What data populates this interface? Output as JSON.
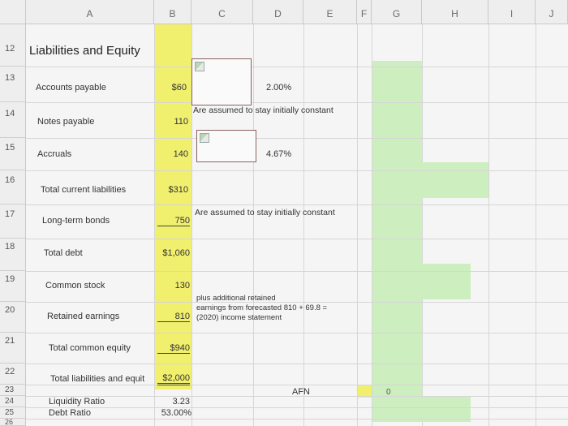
{
  "columns": [
    "A",
    "B",
    "C",
    "D",
    "E",
    "F",
    "G",
    "H",
    "I",
    "J"
  ],
  "rows": [
    "12",
    "13",
    "14",
    "15",
    "16",
    "17",
    "18",
    "19",
    "20",
    "21",
    "22",
    "23",
    "24",
    "25",
    "26"
  ],
  "section_title": "Liabilities and Equity",
  "items": {
    "accounts_payable": {
      "label": "Accounts payable",
      "value": "$60"
    },
    "notes_payable": {
      "label": "Notes payable",
      "value": "110"
    },
    "accruals": {
      "label": "Accruals",
      "value": "140"
    },
    "total_current_liabilities": {
      "label": "Total current liabilities",
      "value": "$310"
    },
    "long_term_bonds": {
      "label": "Long-term bonds",
      "value": "750"
    },
    "total_debt": {
      "label": "Total debt",
      "value": "$1,060"
    },
    "common_stock": {
      "label": "Common stock",
      "value": "130"
    },
    "retained_earnings": {
      "label": "Retained earnings",
      "value": "810"
    },
    "total_common_equity": {
      "label": "Total common equity",
      "value": "$940"
    },
    "total_liabilities_equity": {
      "label": "Total liabilities and equit",
      "value": "$2,000"
    },
    "liquidity_ratio": {
      "label": "Liquidity Ratio",
      "value": "3.23"
    },
    "debt_ratio": {
      "label": "Debt Ratio",
      "value": "53.00%"
    }
  },
  "notes": {
    "pct_ap": "2.00%",
    "assumed_constant_1": "Are assumed to stay initially constant",
    "pct_accruals": "4.67%",
    "assumed_constant_2": "Are assumed to stay initially constant",
    "retained_line1": "plus additional retained",
    "retained_line2": "earnings from forecasted  810 + 69.8 =",
    "retained_line3": "(2020) income statement"
  },
  "afn_label": "AFN",
  "afn_value": "0",
  "colors": {
    "yellow": "#f1ef6e",
    "green": "#cdeebf"
  }
}
